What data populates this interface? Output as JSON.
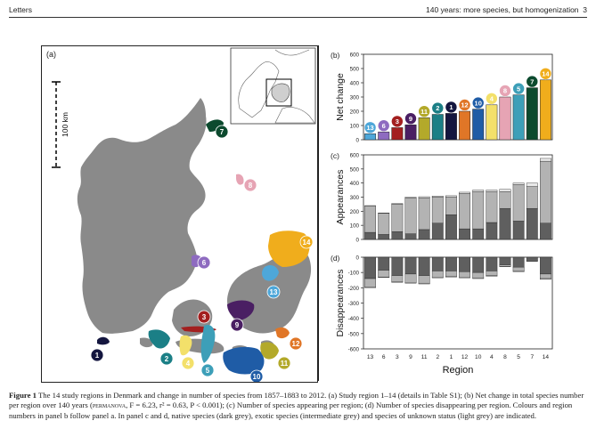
{
  "header": {
    "left": "Letters",
    "right": "140 years: more species, but homogenization",
    "page": "3"
  },
  "map": {
    "panel_label": "(a)",
    "scale_label": "100 km",
    "land_color": "#8a8a8a",
    "regions": [
      {
        "id": "1",
        "color": "#14163f"
      },
      {
        "id": "2",
        "color": "#1b7f86"
      },
      {
        "id": "3",
        "color": "#a31f1f"
      },
      {
        "id": "4",
        "color": "#f3e06a"
      },
      {
        "id": "5",
        "color": "#3d9fb8"
      },
      {
        "id": "6",
        "color": "#8e6bc0"
      },
      {
        "id": "7",
        "color": "#0c4a2e"
      },
      {
        "id": "8",
        "color": "#e6a4b4"
      },
      {
        "id": "9",
        "color": "#4a1f63"
      },
      {
        "id": "10",
        "color": "#1f5ca6"
      },
      {
        "id": "11",
        "color": "#b3a92a"
      },
      {
        "id": "12",
        "color": "#e07627"
      },
      {
        "id": "13",
        "color": "#4ea7d9"
      },
      {
        "id": "14",
        "color": "#f0ad1c"
      }
    ]
  },
  "chart_data": [
    {
      "type": "bar",
      "panel_label": "(b)",
      "ylabel": "Net change",
      "ylim": [
        0,
        600
      ],
      "yticks": [
        0,
        100,
        200,
        300,
        400,
        500,
        600
      ],
      "categories": [
        "13",
        "6",
        "3",
        "9",
        "11",
        "2",
        "1",
        "12",
        "10",
        "4",
        "8",
        "5",
        "7",
        "14"
      ],
      "values": [
        42,
        55,
        85,
        105,
        155,
        178,
        185,
        200,
        215,
        245,
        300,
        315,
        365,
        420
      ],
      "colors": [
        "#4ea7d9",
        "#8e6bc0",
        "#a31f1f",
        "#4a1f63",
        "#b3a92a",
        "#1b7f86",
        "#14163f",
        "#e07627",
        "#1f5ca6",
        "#f3e06a",
        "#e6a4b4",
        "#3d9fb8",
        "#0c4a2e",
        "#f0ad1c"
      ]
    },
    {
      "type": "bar",
      "panel_label": "(c)",
      "ylabel": "Appearances",
      "ylim": [
        0,
        600
      ],
      "yticks": [
        0,
        100,
        200,
        300,
        400,
        500,
        600
      ],
      "categories": [
        "13",
        "6",
        "3",
        "9",
        "11",
        "2",
        "1",
        "12",
        "10",
        "4",
        "8",
        "5",
        "7",
        "14"
      ],
      "series": [
        {
          "values": [
            50,
            35,
            55,
            40,
            70,
            115,
            175,
            75,
            75,
            120,
            220,
            130,
            220,
            115
          ]
        },
        {
          "values": [
            185,
            150,
            195,
            255,
            225,
            185,
            125,
            250,
            265,
            220,
            120,
            260,
            155,
            440
          ]
        },
        {
          "values": [
            5,
            3,
            5,
            5,
            8,
            8,
            10,
            10,
            10,
            10,
            15,
            10,
            25,
            20
          ]
        }
      ],
      "series_colors": [
        "#5f5f5f",
        "#b3b3b3",
        "#e8e8e8"
      ]
    },
    {
      "type": "bar",
      "panel_label": "(d)",
      "ylabel": "Disappearances",
      "xlabel": "Region",
      "ylim": [
        -600,
        0
      ],
      "yticks": [
        0,
        -100,
        -200,
        -300,
        -400,
        -500,
        -600
      ],
      "categories": [
        "13",
        "6",
        "3",
        "9",
        "11",
        "2",
        "1",
        "12",
        "10",
        "4",
        "8",
        "5",
        "7",
        "14"
      ],
      "series": [
        {
          "values": [
            -140,
            -85,
            -120,
            -110,
            -120,
            -90,
            -90,
            -95,
            -100,
            -90,
            -50,
            -65,
            -20,
            -110
          ]
        },
        {
          "values": [
            -55,
            -45,
            -40,
            -55,
            -50,
            -40,
            -35,
            -35,
            -35,
            -30,
            -10,
            -25,
            -5,
            -30
          ]
        },
        {
          "values": [
            -5,
            -3,
            -5,
            -5,
            -5,
            -5,
            -5,
            -5,
            -5,
            -5,
            -2,
            -5,
            -2,
            -5
          ]
        }
      ],
      "series_colors": [
        "#5f5f5f",
        "#b3b3b3",
        "#e8e8e8"
      ]
    }
  ],
  "caption": {
    "fig": "Figure 1",
    "p1": " The 14 study regions in Denmark and change in number of species from 1857–1883 to 2012. (a) Study region 1–14 (details in Table S1); (b) Net change in total species number per region over 140 years (",
    "sc": "permanova",
    "p2": ", F = 6.23, r² = 0.63, P < 0.001); (c) Number of species appearing per region; (d) Number of species disappearing per region. Colours and region numbers in panel b follow panel a. In panel c and d, native species (dark grey), exotic species (intermediate grey) and species of unknown status (light grey) are indicated."
  }
}
